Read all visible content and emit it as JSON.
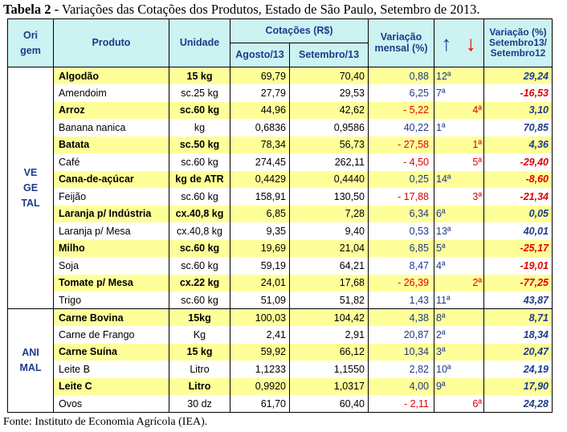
{
  "caption": {
    "prefix": "Tabela 2 -",
    "text": " Variações das Cotações dos Produtos, Estado de São Paulo, Setembro de 2013."
  },
  "header": {
    "origem_1": "Ori",
    "origem_2": "gem",
    "produto": "Produto",
    "unidade": "Unidade",
    "cotacoes": "Cotações (R$)",
    "agosto": "Agosto/13",
    "setembro": "Setembro/13",
    "variacao_1": "Variação",
    "variacao_2": "mensal (%)",
    "arrow_up": "↑",
    "arrow_down": "↓",
    "anual_1": "Variação (%)",
    "anual_2": "Setembro13/",
    "anual_3": "Setembro12"
  },
  "groups": {
    "vegetal": [
      "VE",
      "GE",
      "TAL"
    ],
    "animal": [
      "ANI",
      "MAL"
    ]
  },
  "rows": [
    {
      "produto": "Algodão",
      "unidade": "15 kg",
      "agosto": "69,79",
      "setembro": "70,40",
      "variacao": "0,88",
      "up": "12ª",
      "down": "",
      "anual": "29,24"
    },
    {
      "produto": "Amendoim",
      "unidade": "sc.25 kg",
      "agosto": "27,79",
      "setembro": "29,53",
      "variacao": "6,25",
      "up": "7ª",
      "down": "",
      "anual": "-16,53"
    },
    {
      "produto": "Arroz",
      "unidade": "sc.60 kg",
      "agosto": "44,96",
      "setembro": "42,62",
      "variacao": "- 5,22",
      "up": "",
      "down": "4ª",
      "anual": "3,10"
    },
    {
      "produto": "Banana nanica",
      "unidade": "kg",
      "agosto": "0,6836",
      "setembro": "0,9586",
      "variacao": "40,22",
      "up": "1ª",
      "down": "",
      "anual": "70,85"
    },
    {
      "produto": "Batata",
      "unidade": "sc.50 kg",
      "agosto": "78,34",
      "setembro": "56,73",
      "variacao": "- 27,58",
      "up": "",
      "down": "1ª",
      "anual": "4,36"
    },
    {
      "produto": "Café",
      "unidade": "sc.60 kg",
      "agosto": "274,45",
      "setembro": "262,11",
      "variacao": "- 4,50",
      "up": "",
      "down": "5ª",
      "anual": "-29,40"
    },
    {
      "produto": "Cana-de-açúcar",
      "unidade": "kg de ATR",
      "agosto": "0,4429",
      "setembro": "0,4440",
      "variacao": "0,25",
      "up": "14ª",
      "down": "",
      "anual": "-8,60"
    },
    {
      "produto": "Feijão",
      "unidade": "sc.60 kg",
      "agosto": "158,91",
      "setembro": "130,50",
      "variacao": "- 17,88",
      "up": "",
      "down": "3ª",
      "anual": "-21,34"
    },
    {
      "produto": "Laranja p/ Indústria",
      "unidade": "cx.40,8 kg",
      "agosto": "6,85",
      "setembro": "7,28",
      "variacao": "6,34",
      "up": "6ª",
      "down": "",
      "anual": "0,05"
    },
    {
      "produto": "Laranja p/ Mesa",
      "unidade": "cx.40,8 kg",
      "agosto": "9,35",
      "setembro": "9,40",
      "variacao": "0,53",
      "up": "13ª",
      "down": "",
      "anual": "40,01"
    },
    {
      "produto": "Milho",
      "unidade": "sc.60 kg",
      "agosto": "19,69",
      "setembro": "21,04",
      "variacao": "6,85",
      "up": "5ª",
      "down": "",
      "anual": "-25,17"
    },
    {
      "produto": "Soja",
      "unidade": "sc.60 kg",
      "agosto": "59,19",
      "setembro": "64,21",
      "variacao": "8,47",
      "up": "4ª",
      "down": "",
      "anual": "-19,01"
    },
    {
      "produto": "Tomate p/ Mesa",
      "unidade": "cx.22 kg",
      "agosto": "24,01",
      "setembro": "17,68",
      "variacao": "- 26,39",
      "up": "",
      "down": "2ª",
      "anual": "-77,25"
    },
    {
      "produto": "Trigo",
      "unidade": "sc.60 kg",
      "agosto": "51,09",
      "setembro": "51,82",
      "variacao": "1,43",
      "up": "11ª",
      "down": "",
      "anual": "43,87"
    },
    {
      "produto": "Carne Bovina",
      "unidade": "15kg",
      "agosto": "100,03",
      "setembro": "104,42",
      "variacao": "4,38",
      "up": "8ª",
      "down": "",
      "anual": "8,71"
    },
    {
      "produto": "Carne de Frango",
      "unidade": "Kg",
      "agosto": "2,41",
      "setembro": "2,91",
      "variacao": "20,87",
      "up": "2ª",
      "down": "",
      "anual": "18,34"
    },
    {
      "produto": "Carne Suína",
      "unidade": "15 kg",
      "agosto": "59,92",
      "setembro": "66,12",
      "variacao": "10,34",
      "up": "3ª",
      "down": "",
      "anual": "20,47"
    },
    {
      "produto": "Leite B",
      "unidade": "Litro",
      "agosto": "1,1233",
      "setembro": "1,1550",
      "variacao": "2,82",
      "up": "10ª",
      "down": "",
      "anual": "24,19"
    },
    {
      "produto": "Leite C",
      "unidade": "Litro",
      "agosto": "0,9920",
      "setembro": "1,0317",
      "variacao": "4,00",
      "up": "9ª",
      "down": "",
      "anual": "17,90"
    },
    {
      "produto": "Ovos",
      "unidade": "30 dz",
      "agosto": "61,70",
      "setembro": "60,40",
      "variacao": "- 2,11",
      "up": "",
      "down": "6ª",
      "anual": "24,28"
    }
  ],
  "footer": "Fonte: Instituto de Economia Agrícola (IEA).",
  "colors": {
    "header_bg": "#ccf2f2",
    "highlight_bg": "#ffff99",
    "blue": "#1f3a8a",
    "red": "#e00000"
  }
}
